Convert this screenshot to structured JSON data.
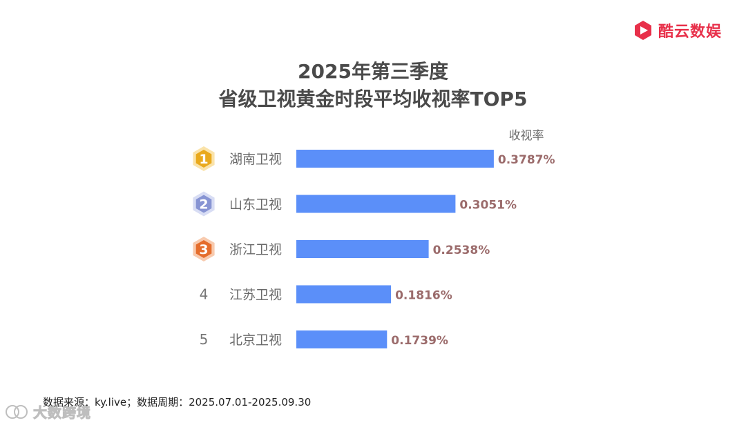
{
  "brand": {
    "name": "酷云数娱",
    "color": "#e8304a"
  },
  "title_lines": [
    "2025年第三季度",
    "省级卫视黄金时段平均收视率TOP5"
  ],
  "footer": "数据来源：ky.live；数据周期：2025.07.01-2025.09.30",
  "watermark": "大数跨境",
  "colors": {
    "bar": "#5b8ff9",
    "value_label": "#9b6b6b",
    "title": "#4a4a4a",
    "category_label": "#6a6a6a",
    "rank1": "#f5c242",
    "rank2": "#a9b4e6",
    "rank3": "#f08a4b"
  },
  "chart_data": {
    "type": "bar",
    "orientation": "horizontal",
    "ylabel": "收视率",
    "categories": [
      "湖南卫视",
      "山东卫视",
      "浙江卫视",
      "江苏卫视",
      "北京卫视"
    ],
    "ranks": [
      "1",
      "2",
      "3",
      "4",
      "5"
    ],
    "values": [
      0.3787,
      0.3051,
      0.2538,
      0.1816,
      0.1739
    ],
    "value_labels": [
      "0.3787%",
      "0.3051%",
      "0.2538%",
      "0.1816%",
      "0.1739%"
    ],
    "unit": "%",
    "grid": false,
    "legend": "none"
  }
}
